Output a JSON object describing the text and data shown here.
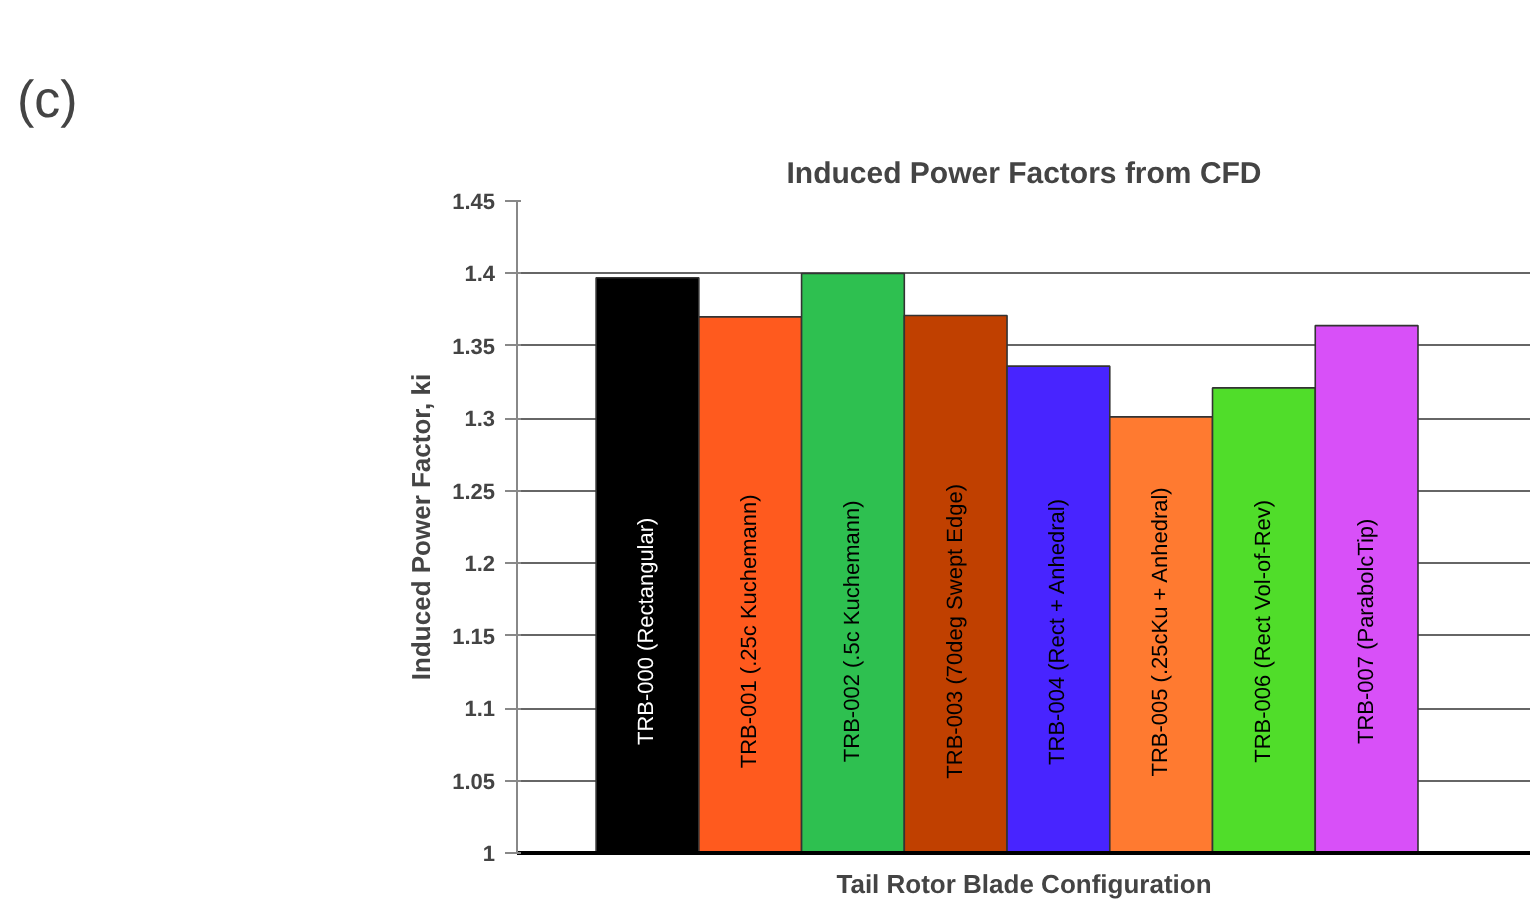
{
  "chart_data": {
    "type": "bar",
    "title": "Induced Power Factors from CFD",
    "xlabel": "Tail Rotor Blade Configuration",
    "ylabel": "Induced Power Factor, ki",
    "annotations": [
      "(c)"
    ],
    "categories": [
      "TRB-000 (Rectangular)",
      "TRB-001 (.25c Kuchemann)",
      "TRB-002 (.5c Kuchemann)",
      "TRB-003 (70deg Swept Edge)",
      "TRB-004 (Rect + Anhedral)",
      "TRB-005 (.25cKu + Anhedral)",
      "TRB-006 (Rect Vol-of-Rev)",
      "TRB-007 (ParabolcTip)"
    ],
    "values": [
      1.397,
      1.37,
      1.4,
      1.371,
      1.336,
      1.301,
      1.321,
      1.364
    ],
    "colors": [
      "#000000",
      "#ff5a1e",
      "#2ec050",
      "#c04000",
      "#4824ff",
      "#ff7a30",
      "#50dd2a",
      "#d850f8"
    ],
    "ylim": [
      1,
      1.45
    ],
    "yticks": [
      1,
      1.05,
      1.1,
      1.15,
      1.2,
      1.25,
      1.3,
      1.35,
      1.4,
      1.45
    ],
    "grid": "y",
    "tick_labels": "y"
  }
}
